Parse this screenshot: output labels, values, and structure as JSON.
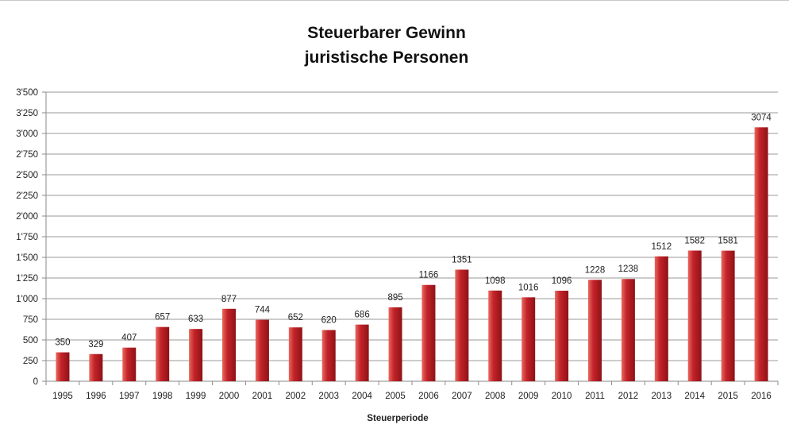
{
  "chart_data": {
    "type": "bar",
    "title_lines": [
      "Steuerbarer Gewinn",
      "juristische Personen"
    ],
    "xlabel": "Steuerperiode",
    "ylabel": "",
    "categories": [
      "1995",
      "1996",
      "1997",
      "1998",
      "1999",
      "2000",
      "2001",
      "2002",
      "2003",
      "2004",
      "2005",
      "2006",
      "2007",
      "2008",
      "2009",
      "2010",
      "2011",
      "2012",
      "2013",
      "2014",
      "2015",
      "2016"
    ],
    "values": [
      350,
      329,
      407,
      657,
      633,
      877,
      744,
      652,
      620,
      686,
      895,
      1166,
      1351,
      1098,
      1016,
      1096,
      1228,
      1238,
      1512,
      1582,
      1581,
      3074
    ],
    "data_labels": [
      "350",
      "329",
      "407",
      "657",
      "633",
      "877",
      "744",
      "652",
      "620",
      "686",
      "895",
      "1166",
      "1351",
      "1098",
      "1016",
      "1096",
      "1228",
      "1238",
      "1512",
      "1582",
      "1581",
      "3074"
    ],
    "ylim": [
      0,
      3500
    ],
    "y_ticks": [
      0,
      250,
      500,
      750,
      1000,
      1250,
      1500,
      1750,
      2000,
      2250,
      2500,
      2750,
      3000,
      3250,
      3500
    ],
    "y_tick_labels": [
      "0",
      "250",
      "500",
      "750",
      "1'000",
      "1'250",
      "1'500",
      "1'750",
      "2'000",
      "2'250",
      "2'500",
      "2'750",
      "3'000",
      "3'250",
      "3'500"
    ],
    "grid": true,
    "legend": "none",
    "colors": {
      "bar_light": "#e86a5e",
      "bar_mid": "#c4232a",
      "bar_dark": "#8e1216",
      "grid": "#9a9a9a",
      "axis": "#8a8a8a"
    }
  }
}
